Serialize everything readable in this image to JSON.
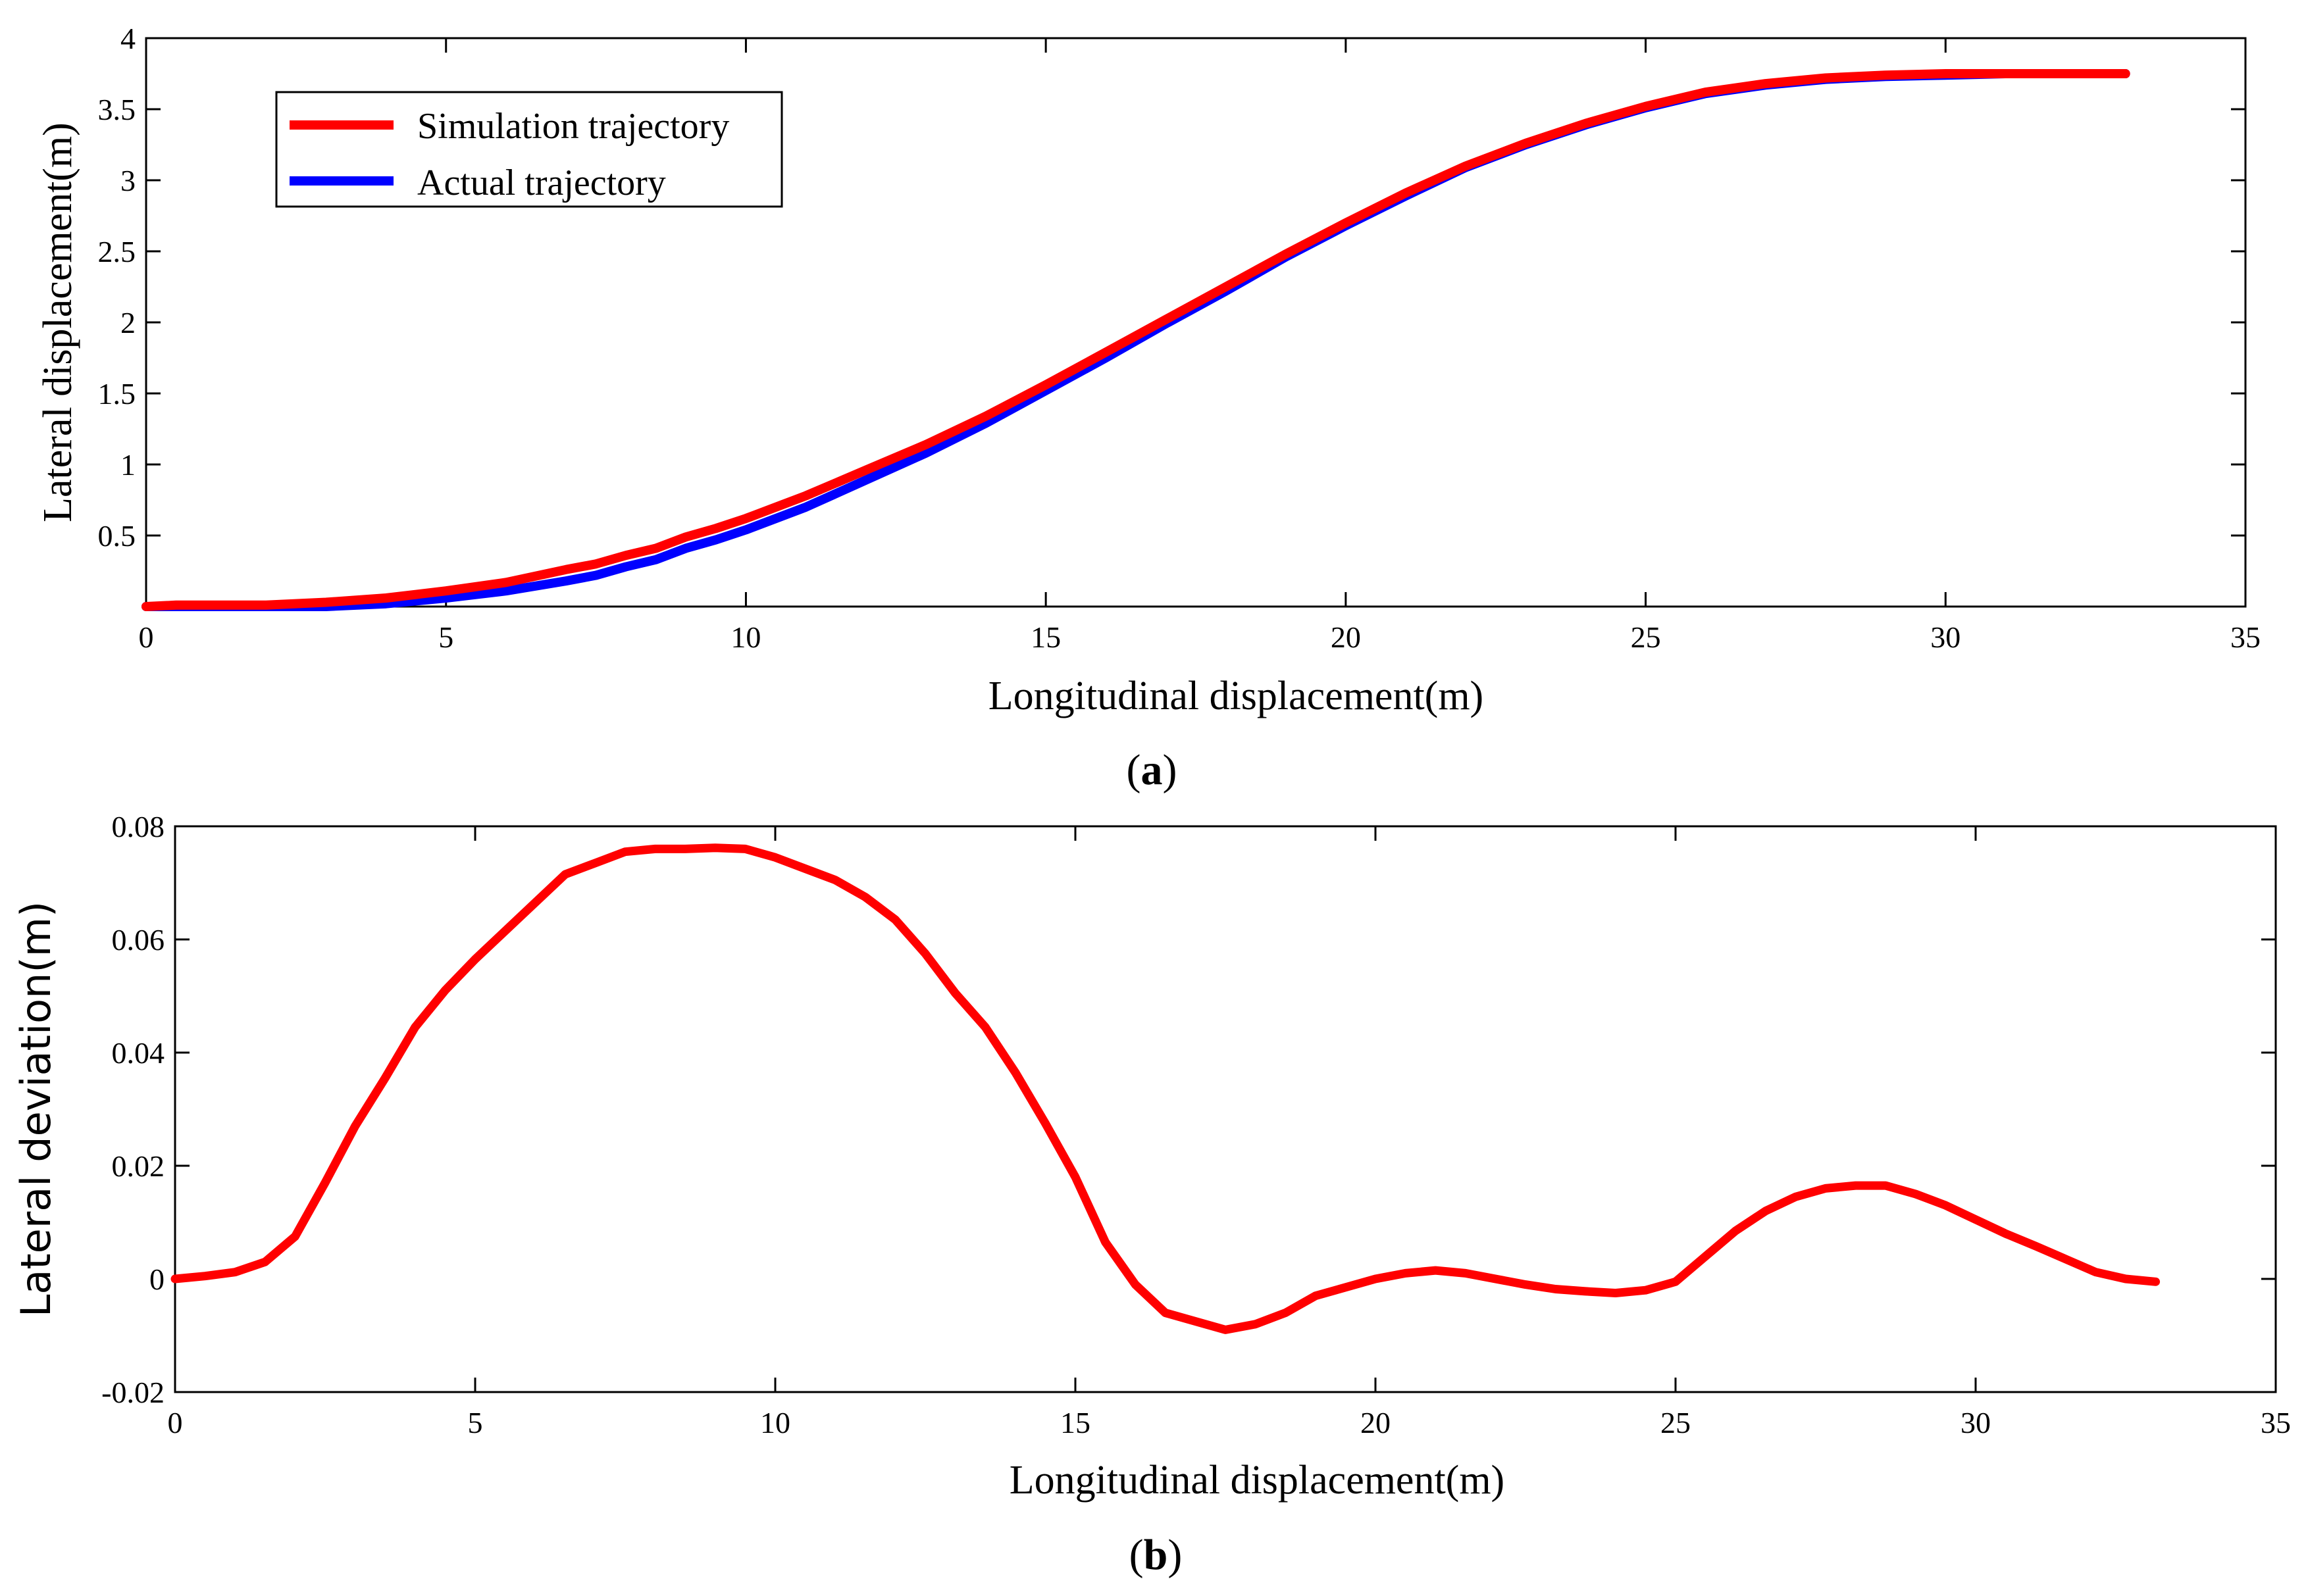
{
  "chart_data": [
    {
      "type": "line",
      "caption": "(a)",
      "caption_letter": "a",
      "title": "",
      "xlabel": "Longitudinal displacement(m)",
      "ylabel": "Lateral displacement(m)",
      "xlim": [
        0,
        35
      ],
      "ylim": [
        0,
        4
      ],
      "xticks": [
        0,
        5,
        10,
        15,
        20,
        25,
        30,
        35
      ],
      "yticks": [
        0.5,
        1,
        1.5,
        2,
        2.5,
        3,
        3.5,
        4
      ],
      "xtick_labels": [
        "0",
        "5",
        "10",
        "15",
        "20",
        "25",
        "30",
        "35"
      ],
      "ytick_labels": [
        "0.5",
        "1",
        "1.5",
        "2",
        "2.5",
        "3",
        "3.5",
        "4"
      ],
      "grid": false,
      "legend_position": "top-left",
      "series": [
        {
          "name": "Simulation trajectory",
          "color": "#ff0000",
          "x": [
            0,
            0.5,
            1,
            2,
            3,
            4,
            5,
            6,
            7,
            7.5,
            8,
            8.5,
            9,
            9.5,
            10,
            11,
            12,
            13,
            14,
            15,
            16,
            17,
            18,
            19,
            20,
            21,
            22,
            23,
            24,
            25,
            26,
            27,
            28,
            29,
            30,
            31,
            32,
            33
          ],
          "y": [
            0,
            0.01,
            0.01,
            0.01,
            0.03,
            0.06,
            0.11,
            0.17,
            0.26,
            0.3,
            0.36,
            0.41,
            0.49,
            0.55,
            0.62,
            0.78,
            0.96,
            1.14,
            1.34,
            1.56,
            1.79,
            2.02,
            2.25,
            2.48,
            2.7,
            2.91,
            3.1,
            3.26,
            3.4,
            3.52,
            3.62,
            3.68,
            3.72,
            3.74,
            3.75,
            3.75,
            3.75,
            3.75
          ]
        },
        {
          "name": "Actual trajectory",
          "color": "#0000ff",
          "x": [
            0,
            0.5,
            1,
            2,
            3,
            4,
            5,
            6,
            7,
            7.5,
            8,
            8.5,
            9,
            9.5,
            10,
            11,
            12,
            13,
            14,
            15,
            16,
            17,
            18,
            19,
            20,
            21,
            22,
            23,
            24,
            25,
            26,
            27,
            28,
            29,
            30,
            31,
            32,
            33
          ],
          "y": [
            0,
            0,
            0,
            0,
            0,
            0.02,
            0.06,
            0.11,
            0.18,
            0.22,
            0.28,
            0.33,
            0.41,
            0.47,
            0.54,
            0.7,
            0.89,
            1.08,
            1.29,
            1.52,
            1.75,
            1.99,
            2.22,
            2.46,
            2.68,
            2.89,
            3.09,
            3.25,
            3.39,
            3.51,
            3.61,
            3.67,
            3.71,
            3.73,
            3.74,
            3.75,
            3.75,
            3.75
          ]
        }
      ]
    },
    {
      "type": "line",
      "caption": "(b)",
      "caption_letter": "b",
      "title": "",
      "xlabel": "Longitudinal displacement(m)",
      "ylabel": "Lateral deviation(m)",
      "xlim": [
        0,
        35
      ],
      "ylim": [
        -0.02,
        0.08
      ],
      "xticks": [
        0,
        5,
        10,
        15,
        20,
        25,
        30,
        35
      ],
      "yticks": [
        -0.02,
        0,
        0.02,
        0.04,
        0.06,
        0.08
      ],
      "xtick_labels": [
        "0",
        "5",
        "10",
        "15",
        "20",
        "25",
        "30",
        "35"
      ],
      "ytick_labels": [
        "-0.02",
        "0",
        "0.02",
        "0.04",
        "0.06",
        "0.08"
      ],
      "grid": false,
      "series": [
        {
          "name": "Lateral deviation",
          "color": "#ff0000",
          "x": [
            0,
            0.5,
            1,
            1.5,
            2,
            2.5,
            3,
            3.5,
            4,
            4.5,
            5,
            5.5,
            6,
            6.5,
            7,
            7.5,
            8,
            8.5,
            9,
            9.5,
            10,
            10.5,
            11,
            11.5,
            12,
            12.5,
            13,
            13.5,
            14,
            14.5,
            15,
            15.5,
            16,
            16.5,
            17,
            17.5,
            18,
            18.5,
            19,
            19.5,
            20,
            20.5,
            21,
            21.5,
            22,
            22.5,
            23,
            23.5,
            24,
            24.5,
            25,
            25.5,
            26,
            26.5,
            27,
            27.5,
            28,
            28.5,
            29,
            29.5,
            30,
            30.5,
            31,
            31.5,
            32,
            32.5,
            33
          ],
          "y": [
            0,
            0.0005,
            0.0012,
            0.003,
            0.0075,
            0.017,
            0.027,
            0.0355,
            0.0445,
            0.051,
            0.0565,
            0.0615,
            0.0665,
            0.0715,
            0.0735,
            0.0755,
            0.076,
            0.076,
            0.0762,
            0.076,
            0.0745,
            0.0725,
            0.0705,
            0.0675,
            0.0635,
            0.0575,
            0.0505,
            0.0445,
            0.0365,
            0.0275,
            0.018,
            0.0065,
            -0.001,
            -0.006,
            -0.0075,
            -0.009,
            -0.008,
            -0.006,
            -0.003,
            -0.0015,
            0,
            0.001,
            0.0015,
            0.001,
            0,
            -0.001,
            -0.0018,
            -0.0022,
            -0.0025,
            -0.002,
            -0.0005,
            0.004,
            0.0085,
            0.012,
            0.0145,
            0.016,
            0.0165,
            0.0165,
            0.015,
            0.013,
            0.0105,
            0.008,
            0.0058,
            0.0035,
            0.0012,
            0,
            -0.0005
          ]
        }
      ]
    }
  ]
}
